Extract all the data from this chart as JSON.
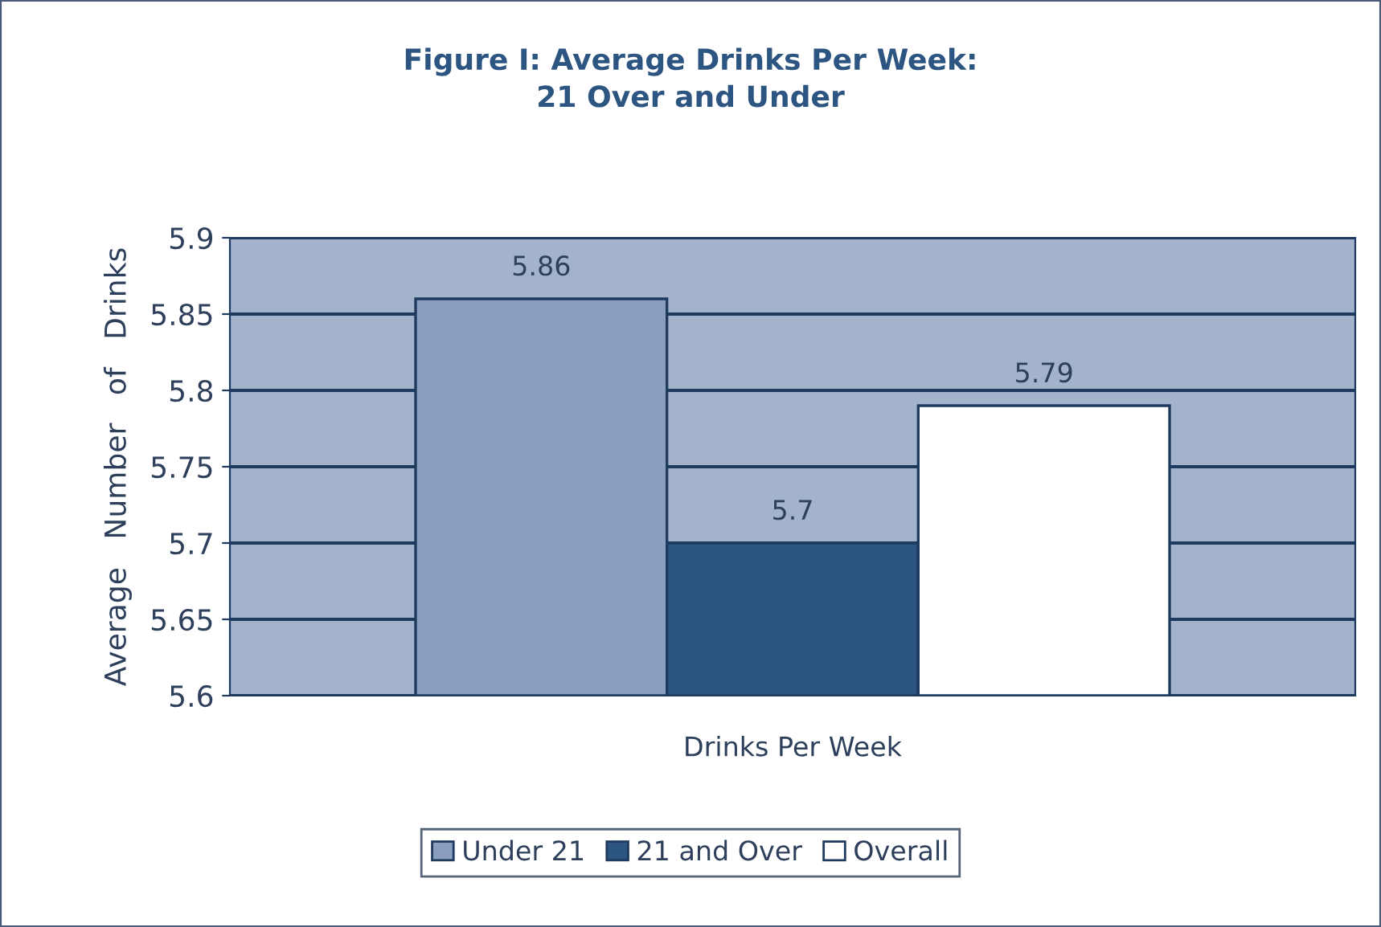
{
  "chart_data": {
    "type": "bar",
    "title": "Figure I: Average Drinks Per Week:\n21 Over and Under",
    "ylabel": "Average   Number   of   Drinks",
    "categories": [
      "Drinks Per Week"
    ],
    "series": [
      {
        "name": "Under 21",
        "color": "#8a9ebf",
        "values": [
          5.86
        ]
      },
      {
        "name": "21 and Over",
        "color": "#2d5581",
        "values": [
          5.7
        ]
      },
      {
        "name": "Overall",
        "color": "#ffffff",
        "values": [
          5.79
        ]
      }
    ],
    "ylim": [
      5.6,
      5.9
    ],
    "yticks": [
      5.6,
      5.65,
      5.7,
      5.75,
      5.8,
      5.85,
      5.9
    ],
    "grid": "y",
    "legend": "bottom",
    "data_labels": true
  }
}
